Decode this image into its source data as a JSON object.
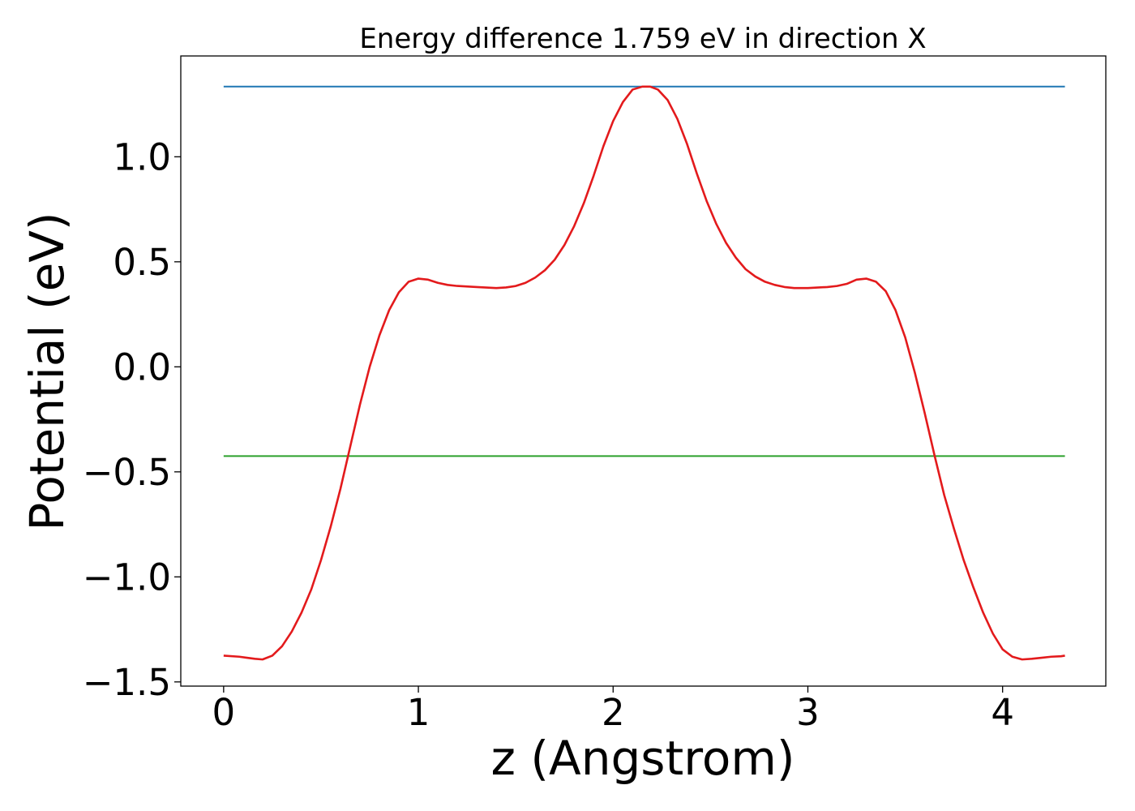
{
  "chart_data": {
    "type": "line",
    "title": "Energy difference 1.759 eV in direction X",
    "xlabel": "z (Angstrom)",
    "ylabel": "Potential (eV)",
    "xlim": [
      -0.22,
      4.53
    ],
    "ylim": [
      -1.52,
      1.48
    ],
    "xticks": [
      0,
      1,
      2,
      3,
      4
    ],
    "xtick_labels": [
      "0",
      "1",
      "2",
      "3",
      "4"
    ],
    "yticks": [
      -1.5,
      -1.0,
      -0.5,
      0.0,
      0.5,
      1.0
    ],
    "ytick_labels": [
      "−1.5",
      "−1.0",
      "−0.5",
      "0.0",
      "0.5",
      "1.0"
    ],
    "grid": false,
    "legend": "none",
    "series": [
      {
        "color": "#1f77b4",
        "x": [
          0,
          4.32
        ],
        "y": [
          1.334,
          1.334
        ]
      },
      {
        "color": "#2ca02c",
        "x": [
          0,
          4.32
        ],
        "y": [
          -0.425,
          -0.425
        ]
      },
      {
        "color": "#e31a1c",
        "x": [
          0,
          0.08,
          0.12,
          0.16,
          0.2,
          0.25,
          0.3,
          0.35,
          0.4,
          0.45,
          0.5,
          0.55,
          0.6,
          0.65,
          0.7,
          0.75,
          0.8,
          0.85,
          0.9,
          0.95,
          1.0,
          1.05,
          1.1,
          1.15,
          1.2,
          1.3,
          1.4,
          1.45,
          1.5,
          1.55,
          1.6,
          1.65,
          1.7,
          1.75,
          1.8,
          1.85,
          1.9,
          1.95,
          2.0,
          2.05,
          2.1,
          2.15,
          2.19,
          2.23,
          2.28,
          2.33,
          2.38,
          2.43,
          2.48,
          2.53,
          2.58,
          2.63,
          2.68,
          2.73,
          2.78,
          2.83,
          2.88,
          2.93,
          3.0,
          3.1,
          3.15,
          3.2,
          3.25,
          3.3,
          3.35,
          3.4,
          3.45,
          3.5,
          3.55,
          3.6,
          3.65,
          3.7,
          3.75,
          3.8,
          3.85,
          3.9,
          3.95,
          4.0,
          4.05,
          4.1,
          4.15,
          4.2,
          4.25,
          4.3,
          4.32
        ],
        "y": [
          -1.375,
          -1.38,
          -1.385,
          -1.39,
          -1.393,
          -1.375,
          -1.33,
          -1.26,
          -1.17,
          -1.06,
          -0.92,
          -0.76,
          -0.58,
          -0.38,
          -0.18,
          0.0,
          0.15,
          0.27,
          0.355,
          0.405,
          0.42,
          0.415,
          0.4,
          0.39,
          0.385,
          0.38,
          0.375,
          0.378,
          0.385,
          0.4,
          0.425,
          0.46,
          0.51,
          0.58,
          0.67,
          0.78,
          0.91,
          1.05,
          1.17,
          1.26,
          1.32,
          1.334,
          1.334,
          1.32,
          1.27,
          1.18,
          1.06,
          0.92,
          0.79,
          0.68,
          0.59,
          0.52,
          0.465,
          0.43,
          0.405,
          0.39,
          0.38,
          0.375,
          0.375,
          0.38,
          0.385,
          0.395,
          0.415,
          0.42,
          0.405,
          0.36,
          0.27,
          0.14,
          -0.03,
          -0.22,
          -0.42,
          -0.61,
          -0.77,
          -0.92,
          -1.05,
          -1.17,
          -1.27,
          -1.345,
          -1.38,
          -1.393,
          -1.39,
          -1.385,
          -1.38,
          -1.378,
          -1.375
        ]
      }
    ]
  }
}
